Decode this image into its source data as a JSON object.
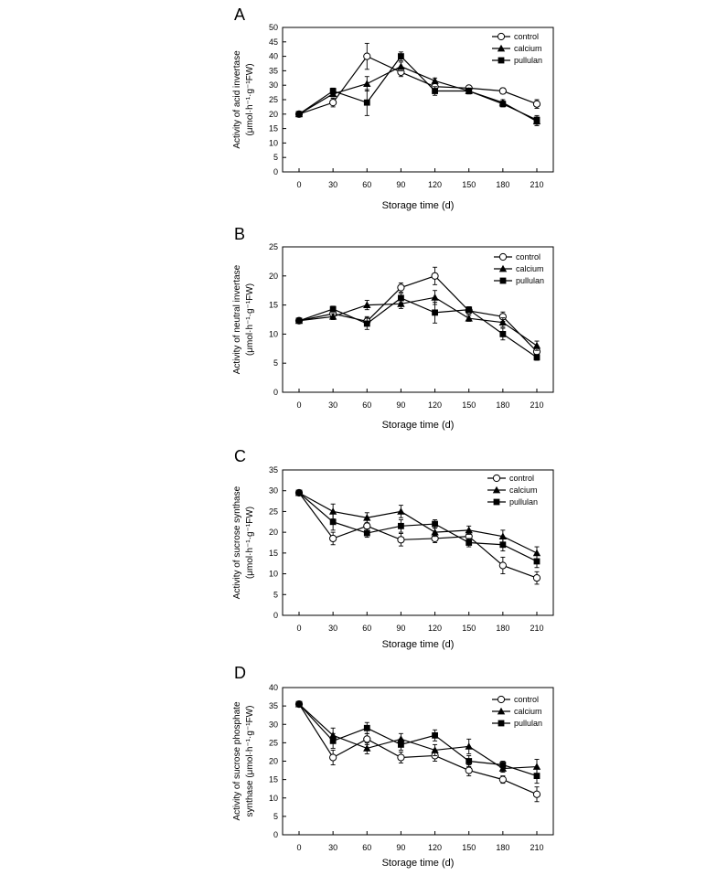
{
  "chart_data": [
    {
      "type": "line",
      "panel": "A",
      "xlabel": "Storage time (d)",
      "ylabel_line1": "Activity of acid invertase",
      "ylabel_line2": "(μmol·h⁻¹·g⁻¹FW)",
      "x": [
        0,
        30,
        60,
        90,
        120,
        150,
        180,
        210
      ],
      "xticks": [
        "0",
        "30",
        "60",
        "90",
        "120",
        "150",
        "180",
        "210"
      ],
      "ylim": [
        0,
        50
      ],
      "yticks": [
        "0",
        "5",
        "10",
        "15",
        "20",
        "25",
        "30",
        "35",
        "40",
        "45",
        "50"
      ],
      "legend": "top-right",
      "series": [
        {
          "name": "control",
          "marker": "open-circle",
          "values": [
            20,
            24,
            40,
            34.5,
            29.5,
            29,
            28,
            23.5
          ],
          "errors": [
            0.5,
            1.5,
            4.5,
            1.5,
            1,
            0.5,
            1,
            1.5
          ]
        },
        {
          "name": "calcium",
          "marker": "triangle",
          "values": [
            20,
            27,
            30.5,
            36.5,
            31.5,
            28,
            24,
            17.5
          ],
          "errors": [
            0.5,
            1,
            2.5,
            1.5,
            1,
            1,
            1,
            1.5
          ]
        },
        {
          "name": "pullulan",
          "marker": "square",
          "values": [
            20,
            28,
            24,
            40,
            28,
            28,
            23.5,
            18
          ],
          "errors": [
            0.5,
            1,
            4.5,
            1.5,
            1.5,
            1,
            1,
            1.5
          ]
        }
      ]
    },
    {
      "type": "line",
      "panel": "B",
      "xlabel": "Storage time (d)",
      "ylabel_line1": "Activity of neutral invertase",
      "ylabel_line2": "(μmol·h⁻¹·g⁻¹FW)",
      "x": [
        0,
        30,
        60,
        90,
        120,
        150,
        180,
        210
      ],
      "xticks": [
        "0",
        "30",
        "60",
        "90",
        "120",
        "150",
        "180",
        "210"
      ],
      "ylim": [
        0,
        25
      ],
      "yticks": [
        "0",
        "5",
        "10",
        "15",
        "20",
        "25"
      ],
      "legend": "top-right",
      "series": [
        {
          "name": "control",
          "marker": "open-circle",
          "values": [
            12.3,
            13.5,
            12.2,
            18,
            20,
            14,
            13,
            7
          ],
          "errors": [
            0.3,
            0.8,
            0.8,
            0.8,
            1.5,
            0.5,
            0.8,
            0.8
          ]
        },
        {
          "name": "calcium",
          "marker": "triangle",
          "values": [
            12.3,
            13,
            15,
            15.2,
            16.3,
            12.7,
            12,
            8
          ],
          "errors": [
            0.3,
            0.5,
            0.8,
            0.8,
            1.2,
            0.5,
            0.8,
            0.8
          ]
        },
        {
          "name": "pullulan",
          "marker": "square",
          "values": [
            12.3,
            14.3,
            11.8,
            16.2,
            13.7,
            14.2,
            10,
            6
          ],
          "errors": [
            0.3,
            0.5,
            1,
            0.8,
            1.8,
            0.5,
            1,
            0.5
          ]
        }
      ]
    },
    {
      "type": "line",
      "panel": "C",
      "xlabel": "Storage time (d)",
      "ylabel_line1": "Activity of sucrose synthase",
      "ylabel_line2": "(μmol·h⁻¹·g⁻¹FW)",
      "x": [
        0,
        30,
        60,
        90,
        120,
        150,
        180,
        210
      ],
      "xticks": [
        "0",
        "30",
        "60",
        "90",
        "120",
        "150",
        "180",
        "210"
      ],
      "ylim": [
        0,
        35
      ],
      "yticks": [
        "0",
        "5",
        "10",
        "15",
        "20",
        "25",
        "30",
        "35"
      ],
      "legend": "top-right",
      "series": [
        {
          "name": "control",
          "marker": "open-circle",
          "values": [
            29.5,
            18.5,
            21.5,
            18.2,
            18.5,
            19,
            12,
            9
          ],
          "errors": [
            0.5,
            1.5,
            1.5,
            1.5,
            1,
            1,
            2,
            1.5
          ]
        },
        {
          "name": "calcium",
          "marker": "triangle",
          "values": [
            29.5,
            25,
            23.5,
            25,
            20,
            20.5,
            19,
            15
          ],
          "errors": [
            0.5,
            1.8,
            1.2,
            1.5,
            1,
            1,
            1.5,
            1.5
          ]
        },
        {
          "name": "pullulan",
          "marker": "square",
          "values": [
            29.5,
            22.5,
            19.8,
            21.5,
            22,
            17.5,
            17,
            13
          ],
          "errors": [
            0.5,
            2,
            1,
            1.5,
            1,
            1,
            1.5,
            1.5
          ]
        }
      ]
    },
    {
      "type": "line",
      "panel": "D",
      "xlabel": "Storage time (d)",
      "ylabel_line1": "Activity of sucrose phosphate",
      "ylabel_line2": "synthase (μmol·h⁻¹·g⁻¹FW)",
      "x": [
        0,
        30,
        60,
        90,
        120,
        150,
        180,
        210
      ],
      "xticks": [
        "0",
        "30",
        "60",
        "90",
        "120",
        "150",
        "180",
        "210"
      ],
      "ylim": [
        0,
        40
      ],
      "yticks": [
        "0",
        "5",
        "10",
        "15",
        "20",
        "25",
        "30",
        "35",
        "40"
      ],
      "legend": "top-right",
      "series": [
        {
          "name": "control",
          "marker": "open-circle",
          "values": [
            35.5,
            21,
            26,
            21,
            21.5,
            17.5,
            15,
            11
          ],
          "errors": [
            0.5,
            2,
            1.5,
            1.5,
            1.5,
            1.5,
            1,
            2
          ]
        },
        {
          "name": "calcium",
          "marker": "triangle",
          "values": [
            35.5,
            27,
            23.5,
            26,
            23,
            24,
            18,
            18.5
          ],
          "errors": [
            0.5,
            2,
            1.5,
            1.5,
            1.5,
            2,
            1,
            2
          ]
        },
        {
          "name": "pullulan",
          "marker": "square",
          "values": [
            35.5,
            25.5,
            29,
            24.5,
            27,
            20,
            19,
            16
          ],
          "errors": [
            0.5,
            2,
            1.5,
            1.5,
            1.5,
            1.5,
            1,
            2
          ]
        }
      ]
    }
  ]
}
